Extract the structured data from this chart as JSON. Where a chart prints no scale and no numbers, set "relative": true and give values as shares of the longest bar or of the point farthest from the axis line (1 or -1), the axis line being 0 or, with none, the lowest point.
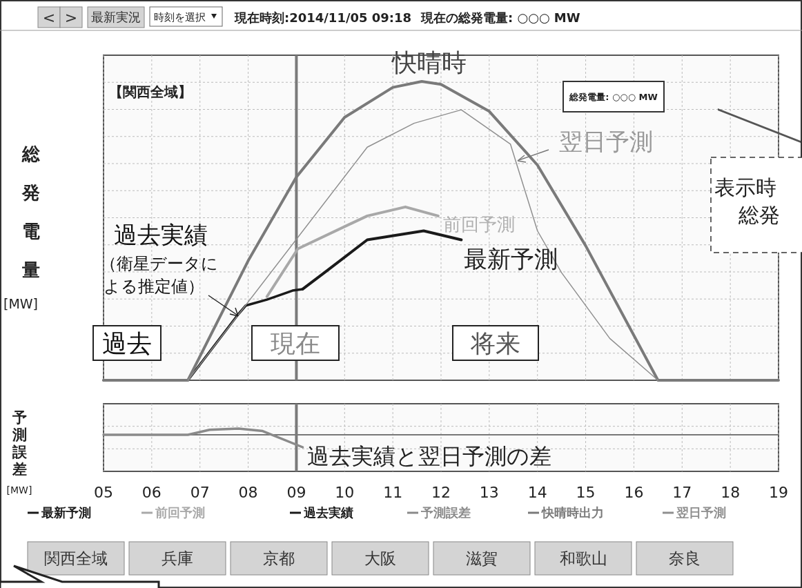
{
  "chart_data": [
    {
      "type": "line",
      "relative": true,
      "ylabel": "総発電量[MW]",
      "xlim": [
        5,
        19
      ],
      "tick_labels": false,
      "grid": true,
      "legend": "bottom",
      "line_style": "solid",
      "xticks": [
        {
          "value": 5,
          "label": null
        },
        {
          "value": 6,
          "label": null
        },
        {
          "value": 7,
          "label": null
        },
        {
          "value": 8,
          "label": null
        },
        {
          "value": 9,
          "label": null
        },
        {
          "value": 10,
          "label": null
        },
        {
          "value": 11,
          "label": null
        },
        {
          "value": 12,
          "label": null
        },
        {
          "value": 13,
          "label": null
        },
        {
          "value": 14,
          "label": null
        },
        {
          "value": 15,
          "label": null
        },
        {
          "value": 16,
          "label": null
        },
        {
          "value": 17,
          "label": null
        },
        {
          "value": 18,
          "label": null
        },
        {
          "value": 19,
          "label": null
        }
      ],
      "ref_lines": [
        {
          "axis": "x",
          "value": 9,
          "color": "#7a7a7a"
        }
      ],
      "series": [
        {
          "name": "最新予測",
          "color": "#1a1a1a",
          "x": [
            9.13,
            9.58,
            10.47,
            11.64,
            12.42
          ],
          "values": [
            0.305,
            0.36,
            0.47,
            0.5,
            0.47
          ]
        },
        {
          "name": "前回予測",
          "color": "#a8a8a8",
          "x": [
            8.39,
            9.03,
            10.47,
            11.26,
            11.94
          ],
          "values": [
            0.28,
            0.44,
            0.55,
            0.58,
            0.55
          ]
        },
        {
          "name": "過去実績",
          "color": "#1a1a1a",
          "x": [
            5,
            6.75,
            7.79,
            7.95,
            8.39,
            8.92,
            9.13
          ],
          "values": [
            0,
            0,
            0.22,
            0.25,
            0.27,
            0.3,
            0.305
          ]
        },
        {
          "name": "快晴時出力",
          "color": "#7a7a7a",
          "x": [
            5,
            6.75,
            7,
            8,
            9,
            10,
            11,
            11.6,
            12,
            13,
            14,
            15,
            16,
            16.5,
            19
          ],
          "values": [
            0,
            0,
            0.08,
            0.4,
            0.68,
            0.88,
            0.98,
            1,
            0.99,
            0.9,
            0.72,
            0.45,
            0.15,
            0,
            0
          ]
        },
        {
          "name": "翌日予測",
          "color": "#8f8f8f",
          "x": [
            6.75,
            10.47,
            11.44,
            12.42,
            13.44,
            14,
            14.5,
            15.5,
            16.5
          ],
          "values": [
            0,
            0.78,
            0.86,
            0.905,
            0.79,
            0.5,
            0.36,
            0.14,
            0
          ]
        }
      ],
      "annotations": [
        "<",
        ">",
        "最新実況",
        "時刻を選択",
        "現在時刻:2014/11/05 09:18",
        "現在の総発電量: ○○○ MW",
        "【関西全域】",
        "総発電量: ○○○ MW",
        "表示時",
        "総発",
        "関西全域",
        "兵庫",
        "京都",
        "大阪",
        "滋賀",
        "和歌山",
        "奈良",
        "快晴時",
        "翌日予測",
        "過去実績",
        "（衛星データに",
        "よる推定値）",
        "前回予測",
        "最新予測",
        "過去",
        "現在",
        "将来"
      ]
    },
    {
      "type": "line",
      "relative": true,
      "ylabel": "予測誤差[MW]",
      "xlim": [
        5,
        19
      ],
      "tick_labels": "x",
      "grid": true,
      "legend": "bottom",
      "line_style": "solid",
      "xticks": [
        {
          "value": 5,
          "label": "05"
        },
        {
          "value": 6,
          "label": "06"
        },
        {
          "value": 7,
          "label": "07"
        },
        {
          "value": 8,
          "label": "08"
        },
        {
          "value": 9,
          "label": "09"
        },
        {
          "value": 10,
          "label": "10"
        },
        {
          "value": 11,
          "label": "11"
        },
        {
          "value": 12,
          "label": "12"
        },
        {
          "value": 13,
          "label": "13"
        },
        {
          "value": 14,
          "label": "14"
        },
        {
          "value": 15,
          "label": "15"
        },
        {
          "value": 16,
          "label": "16"
        },
        {
          "value": 17,
          "label": "17"
        },
        {
          "value": 18,
          "label": "18"
        },
        {
          "value": 19,
          "label": "19"
        }
      ],
      "ref_lines": [
        {
          "axis": "x",
          "value": 9,
          "color": "#7a7a7a"
        }
      ],
      "series": [
        {
          "name": "予測誤差",
          "color": "#8a8a8a",
          "x": [
            5,
            6.75,
            7.2,
            7.8,
            8.3,
            9.13
          ],
          "values": [
            0,
            0,
            0.4,
            0.5,
            0.3,
            -1
          ]
        }
      ],
      "annotations": [
        "過去実績と翌日予測の差"
      ]
    }
  ]
}
